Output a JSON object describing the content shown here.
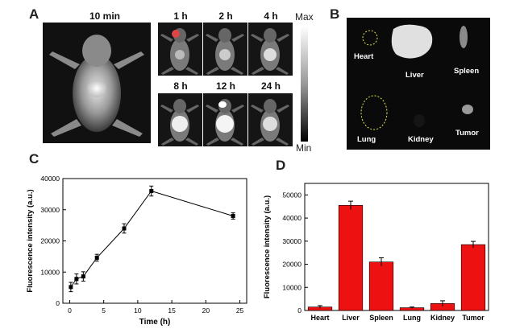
{
  "panels": {
    "a": "A",
    "b": "B",
    "c": "C",
    "d": "D"
  },
  "panel_a": {
    "times": [
      "10 min",
      "1 h",
      "2 h",
      "4 h",
      "8 h",
      "12 h",
      "24 h"
    ],
    "colorbar": {
      "max": "Max",
      "min": "Min"
    }
  },
  "panel_b": {
    "organs": [
      "Heart",
      "Liver",
      "Spleen",
      "Lung",
      "Kidney",
      "Tumor"
    ]
  },
  "chart_data": [
    {
      "type": "line",
      "panel": "C",
      "xlabel": "Time (h)",
      "ylabel": "Fluorescence intensity (a.u.)",
      "x": [
        0.17,
        1,
        2,
        4,
        8,
        12,
        24
      ],
      "y": [
        5200,
        7800,
        8600,
        14600,
        24000,
        36000,
        28000
      ],
      "err": [
        1500,
        1600,
        1500,
        1100,
        1500,
        1600,
        1000
      ],
      "xlim": [
        -1,
        26
      ],
      "ylim": [
        0,
        40000
      ],
      "xticks": [
        "0",
        "5",
        "10",
        "15",
        "20",
        "25"
      ],
      "yticks": [
        "0",
        "10000",
        "20000",
        "30000",
        "40000"
      ],
      "marker": "square",
      "color": "#000000"
    },
    {
      "type": "bar",
      "panel": "D",
      "ylabel": "Fluorescence intensity (a.u.)",
      "categories": [
        "Heart",
        "Liver",
        "Spleen",
        "Lung",
        "Kidney",
        "Tumor"
      ],
      "values": [
        1500,
        45500,
        21000,
        1200,
        3000,
        28500
      ],
      "err": [
        600,
        1800,
        1800,
        300,
        1200,
        1400
      ],
      "ylim": [
        0,
        55000
      ],
      "yticks": [
        "0",
        "10000",
        "20000",
        "30000",
        "40000",
        "50000"
      ],
      "bar_color": "#ee1111"
    }
  ]
}
